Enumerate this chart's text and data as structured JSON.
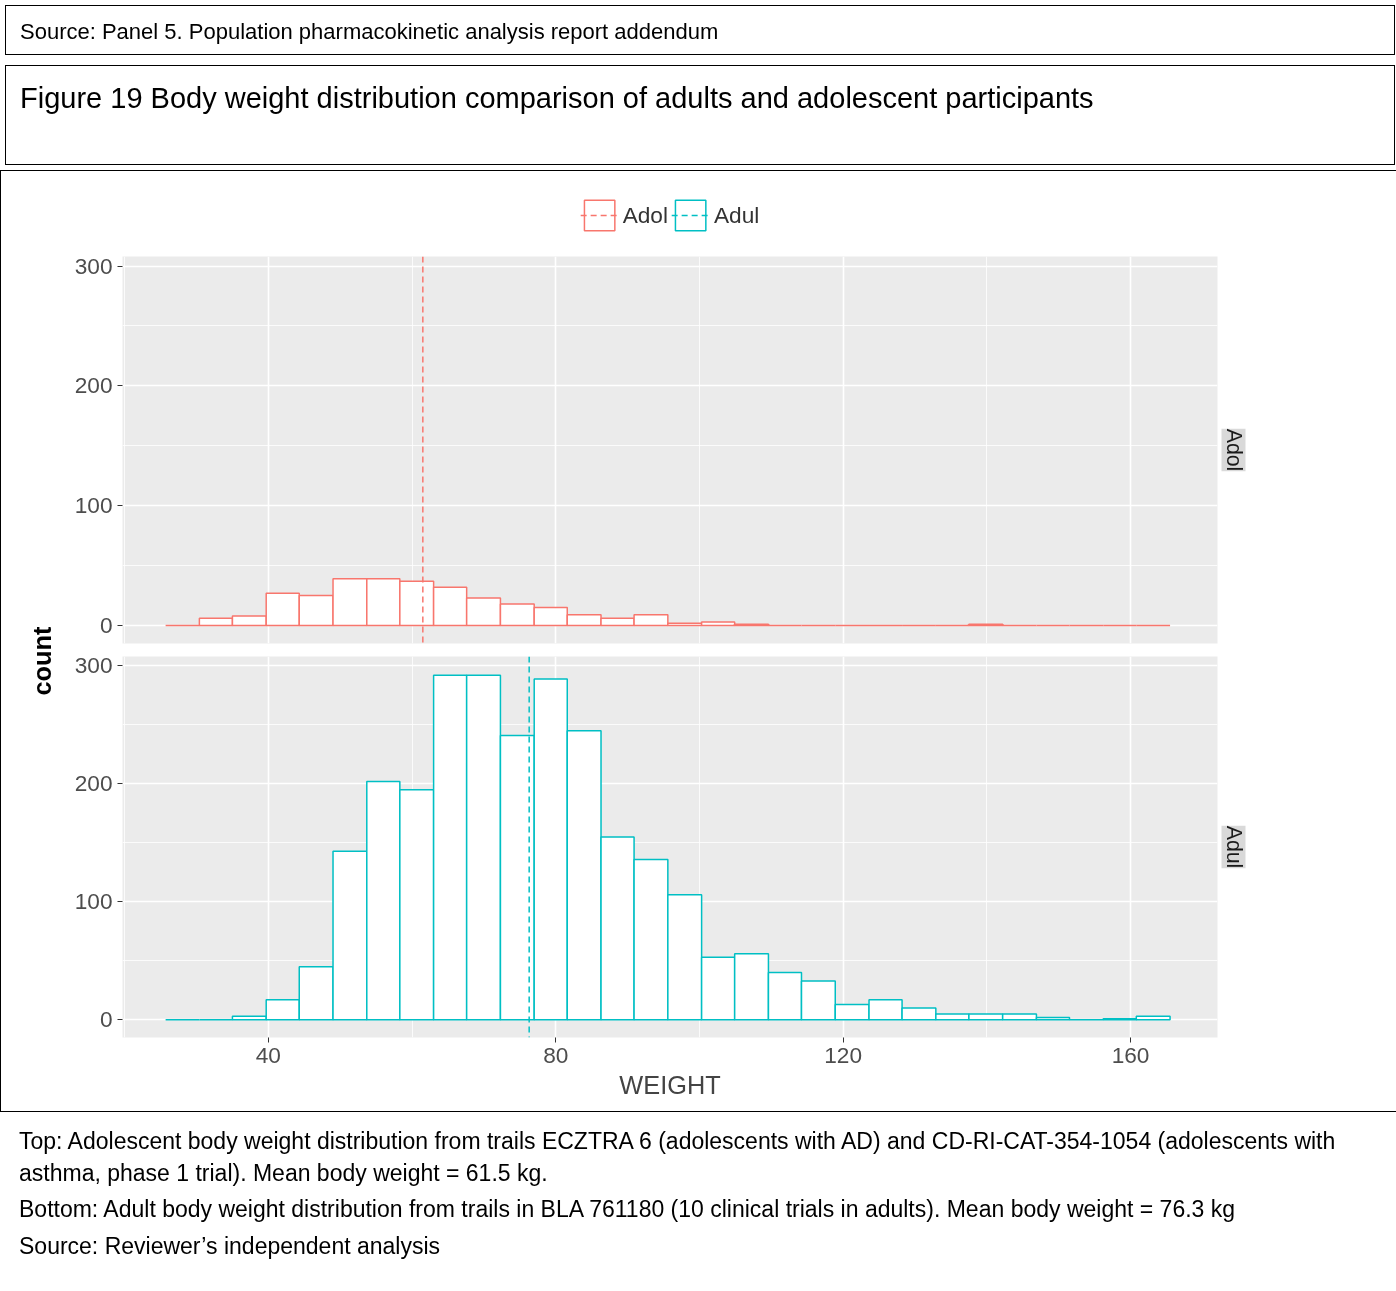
{
  "chart_data": [
    {
      "type": "histogram",
      "title": "Figure 19 Body weight distribution comparison of adults and adolescent participants",
      "ylabel": "count",
      "annotations": [
        "Source: Panel 5. Population pharmacokinetic analysis report addendum"
      ],
      "bins": [
        25.7,
        30.4,
        35.0,
        39.7,
        44.3,
        49.0,
        53.7,
        58.3,
        63.0,
        67.6,
        72.3,
        77.0,
        81.6,
        86.3,
        90.9,
        95.6,
        100.3,
        104.9,
        109.6,
        114.2,
        118.9,
        123.6,
        128.2,
        132.9,
        137.5,
        142.2,
        146.9,
        151.5,
        156.2,
        160.8,
        165.5
      ],
      "series": [
        {
          "name": "Adol",
          "color": "#f8766d",
          "values": [
            0,
            6,
            8,
            27,
            25,
            39,
            39,
            37,
            32,
            23,
            18,
            15,
            9,
            6,
            9,
            2,
            3,
            1,
            0,
            0,
            0,
            0,
            0,
            0,
            1,
            0,
            0,
            0,
            0,
            0
          ]
        }
      ],
      "ref_lines": [
        {
          "axis": "x",
          "value": 61.5,
          "color": "#f8766d",
          "line_style": "dashed"
        }
      ],
      "xlim": [
        19.7,
        172.1
      ],
      "xticks": [
        40,
        80,
        120,
        160
      ],
      "ylim": [
        -15,
        308
      ],
      "yticks": [
        0,
        100,
        200,
        300
      ],
      "grid": true,
      "legend": "top",
      "tick_labels": "y"
    },
    {
      "type": "histogram",
      "xlabel": "WEIGHT",
      "annotations": [
        "Top: Adolescent body weight distribution from trails ECZTRA 6 (adolescents with AD) and CD-RI-CAT-354-1054 (adolescents with asthma, phase 1 trial). Mean body weight = 61.5 kg.",
        "Bottom: Adult body weight distribution from trails in BLA 761180 (10 clinical trials in adults). Mean body weight = 76.3 kg",
        "Source: Reviewer’s independent analysis"
      ],
      "bins": [
        25.7,
        30.4,
        35.0,
        39.7,
        44.3,
        49.0,
        53.7,
        58.3,
        63.0,
        67.6,
        72.3,
        77.0,
        81.6,
        86.3,
        90.9,
        95.6,
        100.3,
        104.9,
        109.6,
        114.2,
        118.9,
        123.6,
        128.2,
        132.9,
        137.5,
        142.2,
        146.9,
        151.5,
        156.2,
        160.8,
        165.5
      ],
      "series": [
        {
          "name": "Adul",
          "color": "#00bfc4",
          "values": [
            0,
            0,
            3,
            17,
            45,
            143,
            202,
            195,
            292,
            292,
            241,
            289,
            245,
            155,
            136,
            106,
            53,
            56,
            40,
            33,
            13,
            17,
            10,
            5,
            5,
            5,
            2,
            0,
            1,
            3
          ]
        }
      ],
      "ref_lines": [
        {
          "axis": "x",
          "value": 76.3,
          "color": "#00bfc4",
          "line_style": "dashed"
        }
      ],
      "xlim": [
        19.7,
        172.1
      ],
      "xticks": [
        40,
        80,
        120,
        160
      ],
      "ylim": [
        -15,
        308
      ],
      "yticks": [
        0,
        100,
        200,
        300
      ],
      "grid": true
    }
  ]
}
